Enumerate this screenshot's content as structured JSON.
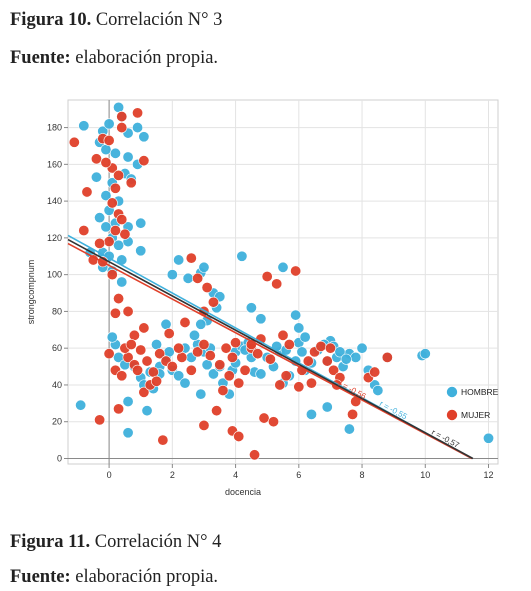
{
  "captions": {
    "fig1_label": "Figura 10.",
    "fig1_text": " Correlación N° 3",
    "source1_label": "Fuente:",
    "source1_text": " elaboración propia.",
    "fig2_label": "Figura 11.",
    "fig2_text": " Correlación N° 4",
    "source2_label": "Fuente:",
    "source2_text": " elaboración propia."
  },
  "chart_data": {
    "type": "scatter",
    "xlabel": "docencia",
    "ylabel": "strongcompnum",
    "xlim": [
      -1.3,
      12.3
    ],
    "ylim": [
      -3,
      195
    ],
    "xticks": [
      0,
      2,
      4,
      6,
      8,
      10,
      12
    ],
    "yticks": [
      0,
      20,
      40,
      60,
      80,
      100,
      120,
      140,
      160,
      180
    ],
    "grid": true,
    "legend_position": "right",
    "series": [
      {
        "name": "HOMBRE",
        "color": "#3fb0dc",
        "points": [
          [
            -0.8,
            181
          ],
          [
            -0.2,
            178
          ],
          [
            0.0,
            182
          ],
          [
            0.3,
            191
          ],
          [
            0.4,
            186
          ],
          [
            0.6,
            177
          ],
          [
            0.9,
            180
          ],
          [
            1.1,
            175
          ],
          [
            -0.3,
            172
          ],
          [
            -0.1,
            168
          ],
          [
            0.2,
            166
          ],
          [
            0.6,
            164
          ],
          [
            0.9,
            160
          ],
          [
            -0.4,
            153
          ],
          [
            0.1,
            150
          ],
          [
            0.5,
            155
          ],
          [
            0.7,
            152
          ],
          [
            -0.1,
            143
          ],
          [
            0.3,
            140
          ],
          [
            0.0,
            135
          ],
          [
            -0.3,
            131
          ],
          [
            0.2,
            128
          ],
          [
            0.6,
            126
          ],
          [
            1.0,
            128
          ],
          [
            -0.1,
            126
          ],
          [
            0.1,
            120
          ],
          [
            0.3,
            116
          ],
          [
            0.6,
            118
          ],
          [
            -0.2,
            112
          ],
          [
            0.0,
            110
          ],
          [
            0.4,
            108
          ],
          [
            1.0,
            113
          ],
          [
            -0.6,
            112
          ],
          [
            -0.2,
            104
          ],
          [
            0.1,
            102
          ],
          [
            0.4,
            96
          ],
          [
            -0.9,
            29
          ],
          [
            0.6,
            31
          ],
          [
            0.6,
            14
          ],
          [
            0.3,
            55
          ],
          [
            0.5,
            51
          ],
          [
            0.2,
            62
          ],
          [
            0.1,
            66
          ],
          [
            0.8,
            50
          ],
          [
            1.0,
            44
          ],
          [
            1.3,
            47
          ],
          [
            1.6,
            50
          ],
          [
            1.8,
            55
          ],
          [
            1.1,
            40
          ],
          [
            1.4,
            38
          ],
          [
            1.2,
            26
          ],
          [
            1.5,
            62
          ],
          [
            1.9,
            58
          ],
          [
            2.0,
            48
          ],
          [
            2.2,
            45
          ],
          [
            2.4,
            60
          ],
          [
            2.6,
            55
          ],
          [
            2.8,
            62
          ],
          [
            3.0,
            58
          ],
          [
            2.7,
            67
          ],
          [
            3.1,
            51
          ],
          [
            2.4,
            41
          ],
          [
            2.9,
            35
          ],
          [
            3.3,
            46
          ],
          [
            3.5,
            50
          ],
          [
            3.6,
            41
          ],
          [
            3.8,
            35
          ],
          [
            3.9,
            48
          ],
          [
            4.0,
            58
          ],
          [
            4.2,
            61
          ],
          [
            4.4,
            63
          ],
          [
            4.5,
            55
          ],
          [
            4.6,
            47
          ],
          [
            4.8,
            46
          ],
          [
            5.0,
            55
          ],
          [
            5.2,
            50
          ],
          [
            5.4,
            58
          ],
          [
            5.5,
            41
          ],
          [
            5.7,
            45
          ],
          [
            5.9,
            53
          ],
          [
            6.0,
            63
          ],
          [
            6.2,
            48
          ],
          [
            6.4,
            52
          ],
          [
            6.6,
            59
          ],
          [
            6.8,
            62
          ],
          [
            7.0,
            64
          ],
          [
            7.2,
            55
          ],
          [
            7.4,
            50
          ],
          [
            7.6,
            57
          ],
          [
            7.8,
            55
          ],
          [
            8.0,
            60
          ],
          [
            8.2,
            48
          ],
          [
            8.4,
            40
          ],
          [
            8.5,
            37
          ],
          [
            8.8,
            55
          ],
          [
            9.9,
            56
          ],
          [
            10.0,
            57
          ],
          [
            6.8,
            62
          ],
          [
            6.9,
            53
          ],
          [
            7.1,
            61
          ],
          [
            7.3,
            58
          ],
          [
            7.5,
            54
          ],
          [
            5.3,
            61
          ],
          [
            5.6,
            59
          ],
          [
            6.1,
            58
          ],
          [
            2.0,
            100
          ],
          [
            2.2,
            108
          ],
          [
            2.5,
            98
          ],
          [
            2.9,
            101
          ],
          [
            3.0,
            104
          ],
          [
            3.3,
            90
          ],
          [
            3.5,
            88
          ],
          [
            3.1,
            75
          ],
          [
            3.4,
            82
          ],
          [
            4.2,
            110
          ],
          [
            4.5,
            82
          ],
          [
            4.8,
            76
          ],
          [
            5.5,
            104
          ],
          [
            5.9,
            78
          ],
          [
            6.0,
            71
          ],
          [
            6.2,
            66
          ],
          [
            1.8,
            73
          ],
          [
            2.9,
            73
          ],
          [
            3.2,
            60
          ],
          [
            4.0,
            52
          ],
          [
            4.3,
            59
          ],
          [
            1.6,
            46
          ],
          [
            7.6,
            16
          ],
          [
            6.4,
            24
          ],
          [
            6.9,
            28
          ],
          [
            12.0,
            11
          ]
        ]
      },
      {
        "name": "MUJER",
        "color": "#e0402a",
        "points": [
          [
            -1.1,
            172
          ],
          [
            -0.2,
            174
          ],
          [
            0.0,
            173
          ],
          [
            0.4,
            180
          ],
          [
            0.4,
            186
          ],
          [
            0.9,
            188
          ],
          [
            0.1,
            158
          ],
          [
            0.3,
            154
          ],
          [
            -0.4,
            163
          ],
          [
            -0.1,
            161
          ],
          [
            0.7,
            150
          ],
          [
            1.1,
            162
          ],
          [
            -0.7,
            145
          ],
          [
            0.2,
            147
          ],
          [
            0.1,
            139
          ],
          [
            0.3,
            133
          ],
          [
            0.4,
            130
          ],
          [
            0.5,
            122
          ],
          [
            0.2,
            124
          ],
          [
            0.0,
            118
          ],
          [
            -0.3,
            117
          ],
          [
            -0.8,
            124
          ],
          [
            -0.5,
            108
          ],
          [
            -0.2,
            107
          ],
          [
            0.1,
            100
          ],
          [
            0.3,
            87
          ],
          [
            0.6,
            80
          ],
          [
            0.2,
            79
          ],
          [
            0.8,
            67
          ],
          [
            1.1,
            71
          ],
          [
            -0.3,
            21
          ],
          [
            0.0,
            57
          ],
          [
            0.2,
            48
          ],
          [
            0.4,
            45
          ],
          [
            0.6,
            55
          ],
          [
            0.8,
            51
          ],
          [
            1.0,
            59
          ],
          [
            1.2,
            53
          ],
          [
            1.4,
            47
          ],
          [
            1.6,
            57
          ],
          [
            1.8,
            53
          ],
          [
            0.5,
            60
          ],
          [
            0.7,
            62
          ],
          [
            0.9,
            48
          ],
          [
            1.1,
            36
          ],
          [
            1.3,
            40
          ],
          [
            1.5,
            42
          ],
          [
            0.3,
            27
          ],
          [
            1.7,
            10
          ],
          [
            2.0,
            50
          ],
          [
            2.3,
            55
          ],
          [
            2.6,
            48
          ],
          [
            2.8,
            58
          ],
          [
            3.0,
            62
          ],
          [
            3.2,
            56
          ],
          [
            3.5,
            51
          ],
          [
            3.7,
            60
          ],
          [
            3.9,
            55
          ],
          [
            4.1,
            41
          ],
          [
            4.3,
            48
          ],
          [
            2.8,
            98
          ],
          [
            3.1,
            93
          ],
          [
            3.0,
            80
          ],
          [
            3.3,
            85
          ],
          [
            2.6,
            109
          ],
          [
            1.9,
            68
          ],
          [
            2.4,
            74
          ],
          [
            3.0,
            18
          ],
          [
            3.4,
            26
          ],
          [
            3.9,
            15
          ],
          [
            4.1,
            12
          ],
          [
            4.6,
            2
          ],
          [
            4.8,
            65
          ],
          [
            5.0,
            99
          ],
          [
            5.3,
            95
          ],
          [
            5.5,
            67
          ],
          [
            5.7,
            62
          ],
          [
            5.9,
            102
          ],
          [
            6.1,
            48
          ],
          [
            6.3,
            53
          ],
          [
            6.5,
            58
          ],
          [
            6.7,
            61
          ],
          [
            6.9,
            53
          ],
          [
            7.1,
            48
          ],
          [
            7.3,
            44
          ],
          [
            4.5,
            60
          ],
          [
            4.7,
            57
          ],
          [
            5.1,
            54
          ],
          [
            5.6,
            45
          ],
          [
            5.4,
            40
          ],
          [
            6.0,
            39
          ],
          [
            6.4,
            41
          ],
          [
            7.0,
            60
          ],
          [
            7.2,
            40
          ],
          [
            7.8,
            31
          ],
          [
            8.2,
            44
          ],
          [
            8.4,
            47
          ],
          [
            8.8,
            55
          ],
          [
            7.7,
            24
          ],
          [
            2.2,
            60
          ],
          [
            3.6,
            37
          ],
          [
            3.8,
            45
          ],
          [
            4.9,
            22
          ],
          [
            5.2,
            20
          ],
          [
            4.0,
            63
          ],
          [
            4.5,
            62
          ]
        ]
      }
    ],
    "fit_lines": [
      {
        "series": "HOMBRE",
        "label": "r = -0,55",
        "color": "#3fb0dc",
        "intercept": 109,
        "slope": -9.5
      },
      {
        "series": "MUJER",
        "label": "r = -0,56",
        "color": "#e0402a",
        "intercept": 105,
        "slope": -9.15
      },
      {
        "series": "total",
        "label": "r = -0,57",
        "color": "#333333",
        "intercept": 107,
        "slope": -9.3
      }
    ]
  }
}
